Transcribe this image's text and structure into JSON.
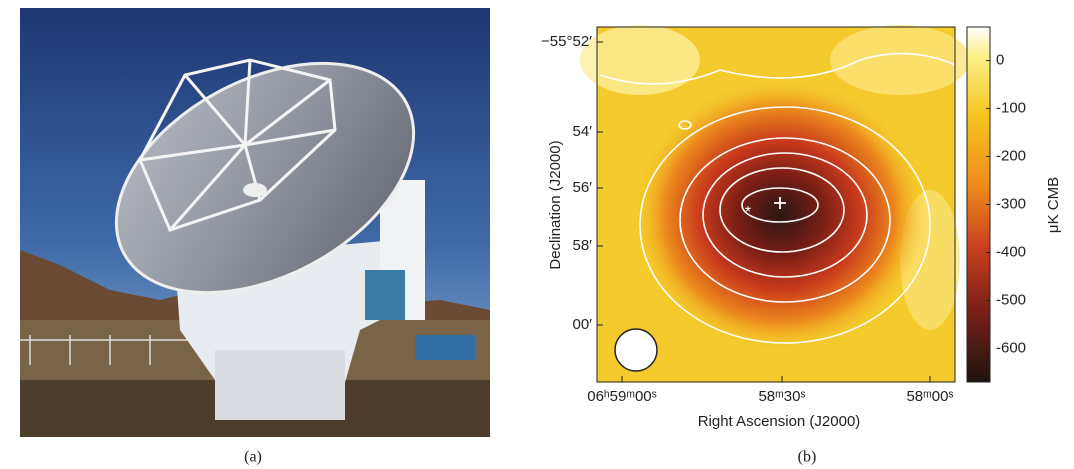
{
  "panels": [
    {
      "label": "(a)"
    },
    {
      "label": "(b)",
      "x_axis_label": "Right Ascension (J2000)",
      "y_axis_label": "Declination (J2000)",
      "x_ticks": [
        "06ʰ59ᵐ00ˢ",
        "58ᵐ30ˢ",
        "58ᵐ00ˢ"
      ],
      "y_ticks": [
        "−55°52′",
        "54′",
        "56′",
        "58′",
        "00′"
      ],
      "colorbar": {
        "label": "μK CMB",
        "range": [
          -670,
          70
        ],
        "ticks": [
          0,
          -100,
          -200,
          -300,
          -400,
          -500,
          -600
        ]
      }
    }
  ]
}
